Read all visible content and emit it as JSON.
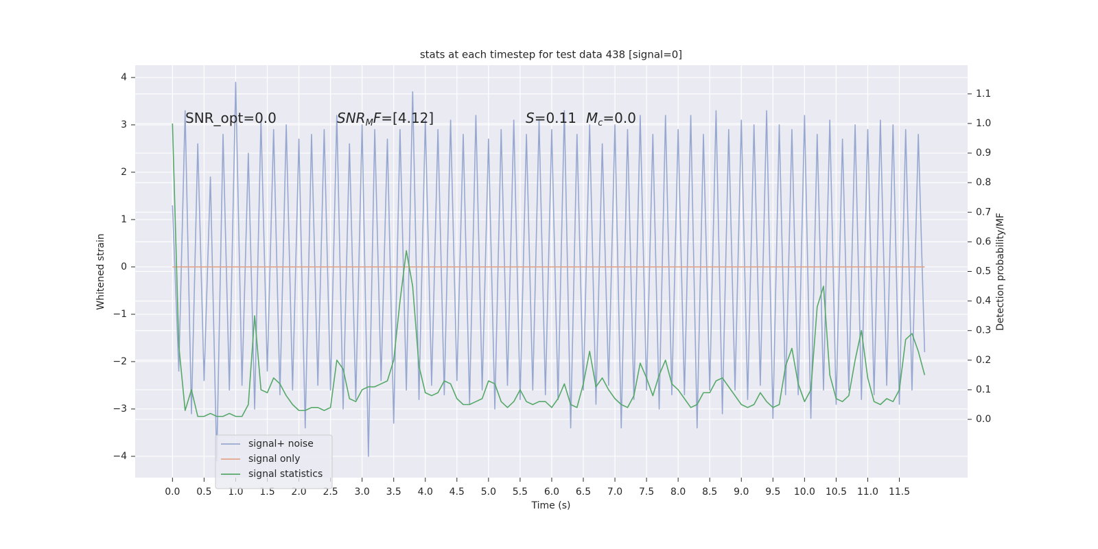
{
  "chart_data": {
    "type": "line",
    "title": "stats at each timestep for test data 438 [signal=0]",
    "xlabel": "Time (s)",
    "ylabel": "Whitened strain",
    "y2label": "Detection probability/MF",
    "grid": true,
    "legend": "lower left",
    "annotations": [
      [
        {
          "text": "SNR_opt=0.0",
          "style": "normal"
        }
      ],
      [
        {
          "text": "SNR",
          "style": "italic"
        },
        {
          "text": "M",
          "style": "sub"
        },
        {
          "text": "F",
          "style": "italic"
        },
        {
          "text": "=[4.12]",
          "style": "normal"
        }
      ],
      [
        {
          "text": "S",
          "style": "italic"
        },
        {
          "text": "=0.11",
          "style": "normal"
        },
        {
          "text": "M",
          "style": "italic-gap"
        },
        {
          "text": "c",
          "style": "sub"
        },
        {
          "text": "=0.0",
          "style": "normal"
        }
      ]
    ],
    "x": [
      0,
      0.1,
      0.2,
      0.3,
      0.4,
      0.5,
      0.6,
      0.7,
      0.8,
      0.9,
      1.0,
      1.1,
      1.2,
      1.3,
      1.4,
      1.5,
      1.6,
      1.7,
      1.8,
      1.9,
      2.0,
      2.1,
      2.2,
      2.3,
      2.4,
      2.5,
      2.6,
      2.7,
      2.8,
      2.9,
      3.0,
      3.1,
      3.2,
      3.3,
      3.4,
      3.5,
      3.6,
      3.7,
      3.8,
      3.9,
      4.0,
      4.1,
      4.2,
      4.3,
      4.4,
      4.5,
      4.6,
      4.7,
      4.8,
      4.9,
      5.0,
      5.1,
      5.2,
      5.3,
      5.4,
      5.5,
      5.6,
      5.7,
      5.8,
      5.9,
      6.0,
      6.1,
      6.2,
      6.3,
      6.4,
      6.5,
      6.6,
      6.7,
      6.8,
      6.9,
      7.0,
      7.1,
      7.2,
      7.3,
      7.4,
      7.5,
      7.6,
      7.7,
      7.8,
      7.9,
      8.0,
      8.1,
      8.2,
      8.3,
      8.4,
      8.5,
      8.6,
      8.7,
      8.8,
      8.9,
      9.0,
      9.1,
      9.2,
      9.3,
      9.4,
      9.5,
      9.6,
      9.7,
      9.8,
      9.9,
      10.0,
      10.1,
      10.2,
      10.3,
      10.4,
      10.5,
      10.6,
      10.7,
      10.8,
      10.9,
      11.0,
      11.1,
      11.2,
      11.3,
      11.4,
      11.5,
      11.6,
      11.7,
      11.8,
      11.9
    ],
    "series": [
      {
        "name": "signal+ noise",
        "color": "#97a8d0",
        "axis": "y",
        "values": [
          1.3,
          -2.2,
          3.3,
          -3.1,
          2.6,
          -2.4,
          1.9,
          -4.1,
          2.8,
          -2.6,
          3.9,
          -2.5,
          2.4,
          -3.0,
          3.1,
          -2.2,
          2.9,
          -2.7,
          3.0,
          -2.6,
          2.7,
          -3.4,
          2.8,
          -2.5,
          2.9,
          -2.6,
          3.2,
          -3.0,
          2.6,
          -2.8,
          3.0,
          -4.0,
          2.9,
          -2.4,
          2.7,
          -3.3,
          2.9,
          -2.6,
          3.7,
          -2.8,
          3.1,
          -2.5,
          2.9,
          -2.7,
          3.1,
          -2.4,
          2.8,
          -2.9,
          3.2,
          -2.6,
          2.7,
          -3.0,
          2.9,
          -2.5,
          3.1,
          -2.8,
          2.8,
          -2.6,
          3.1,
          -2.7,
          2.9,
          -2.8,
          3.3,
          -3.4,
          2.8,
          -2.6,
          3.0,
          -2.9,
          2.6,
          -2.5,
          3.0,
          -3.4,
          2.9,
          -2.8,
          3.2,
          -2.6,
          2.8,
          -3.0,
          3.2,
          -2.7,
          2.9,
          -2.7,
          3.2,
          -3.4,
          2.8,
          -2.6,
          3.3,
          -3.1,
          2.9,
          -2.6,
          3.1,
          -2.8,
          3.0,
          -2.5,
          3.3,
          -3.2,
          3.0,
          -2.7,
          2.9,
          -2.7,
          3.2,
          -3.2,
          2.8,
          -2.6,
          3.1,
          -2.9,
          2.7,
          -2.6,
          3.0,
          -2.8,
          2.9,
          -2.7,
          3.1,
          -2.5,
          3.0,
          -2.9,
          2.9,
          -2.6,
          2.8,
          -1.8
        ]
      },
      {
        "name": "signal only",
        "color": "#e3a488",
        "axis": "y",
        "x": [
          0,
          11.9
        ],
        "values": [
          0,
          0
        ]
      },
      {
        "name": "signal statistics",
        "color": "#55a868",
        "axis": "y2",
        "values": [
          1.0,
          0.25,
          0.03,
          0.1,
          0.01,
          0.01,
          0.02,
          0.01,
          0.01,
          0.02,
          0.01,
          0.01,
          0.05,
          0.35,
          0.1,
          0.09,
          0.14,
          0.12,
          0.08,
          0.05,
          0.03,
          0.03,
          0.04,
          0.04,
          0.03,
          0.04,
          0.2,
          0.17,
          0.07,
          0.06,
          0.1,
          0.11,
          0.11,
          0.12,
          0.13,
          0.2,
          0.4,
          0.57,
          0.45,
          0.18,
          0.09,
          0.08,
          0.09,
          0.13,
          0.12,
          0.07,
          0.05,
          0.05,
          0.06,
          0.07,
          0.13,
          0.12,
          0.06,
          0.04,
          0.06,
          0.1,
          0.06,
          0.05,
          0.06,
          0.06,
          0.04,
          0.07,
          0.12,
          0.05,
          0.04,
          0.12,
          0.23,
          0.11,
          0.14,
          0.1,
          0.07,
          0.05,
          0.04,
          0.08,
          0.19,
          0.14,
          0.08,
          0.15,
          0.2,
          0.12,
          0.1,
          0.07,
          0.04,
          0.05,
          0.09,
          0.09,
          0.13,
          0.14,
          0.11,
          0.08,
          0.05,
          0.04,
          0.05,
          0.09,
          0.06,
          0.04,
          0.05,
          0.18,
          0.24,
          0.12,
          0.06,
          0.1,
          0.38,
          0.45,
          0.15,
          0.07,
          0.06,
          0.08,
          0.2,
          0.3,
          0.14,
          0.06,
          0.05,
          0.07,
          0.06,
          0.1,
          0.27,
          0.29,
          0.23,
          0.15
        ]
      }
    ],
    "xlim": [
      -0.59,
      12.58
    ],
    "xticks": [
      {
        "value": 0,
        "label": "0.0"
      },
      {
        "value": 0.5,
        "label": "0.5"
      },
      {
        "value": 1,
        "label": "1.0"
      },
      {
        "value": 1.5,
        "label": "1.5"
      },
      {
        "value": 2,
        "label": "2.0"
      },
      {
        "value": 2.5,
        "label": "2.5"
      },
      {
        "value": 3,
        "label": "3.0"
      },
      {
        "value": 3.5,
        "label": "3.5"
      },
      {
        "value": 4,
        "label": "4.0"
      },
      {
        "value": 4.5,
        "label": "4.5"
      },
      {
        "value": 5,
        "label": "5.0"
      },
      {
        "value": 5.5,
        "label": "5.5"
      },
      {
        "value": 6,
        "label": "6.0"
      },
      {
        "value": 6.5,
        "label": "6.5"
      },
      {
        "value": 7,
        "label": "7.0"
      },
      {
        "value": 7.5,
        "label": "7.5"
      },
      {
        "value": 8,
        "label": "8.0"
      },
      {
        "value": 8.5,
        "label": "8.5"
      },
      {
        "value": 9,
        "label": "9.0"
      },
      {
        "value": 9.5,
        "label": "9.5"
      },
      {
        "value": 10,
        "label": "10.0"
      },
      {
        "value": 10.5,
        "label": "10.5"
      },
      {
        "value": 11,
        "label": "11.0"
      },
      {
        "value": 11.5,
        "label": "11.5"
      }
    ],
    "ylim": [
      -4.45,
      4.26
    ],
    "yticks": [
      {
        "value": -4,
        "label": "−4"
      },
      {
        "value": -3,
        "label": "−3"
      },
      {
        "value": -2,
        "label": "−2"
      },
      {
        "value": -1,
        "label": "−1"
      },
      0,
      1,
      2,
      3,
      4
    ],
    "y2lim": [
      -0.197,
      1.197
    ],
    "y2ticks": [
      {
        "value": 0,
        "label": "0.0"
      },
      {
        "value": 0.1,
        "label": "0.1"
      },
      {
        "value": 0.2,
        "label": "0.2"
      },
      {
        "value": 0.3,
        "label": "0.3"
      },
      {
        "value": 0.4,
        "label": "0.4"
      },
      {
        "value": 0.5,
        "label": "0.5"
      },
      {
        "value": 0.6,
        "label": "0.6"
      },
      {
        "value": 0.7,
        "label": "0.7"
      },
      {
        "value": 0.8,
        "label": "0.8"
      },
      {
        "value": 0.9,
        "label": "0.9"
      },
      {
        "value": 1,
        "label": "1.0"
      },
      {
        "value": 1.1,
        "label": "1.1"
      }
    ]
  }
}
